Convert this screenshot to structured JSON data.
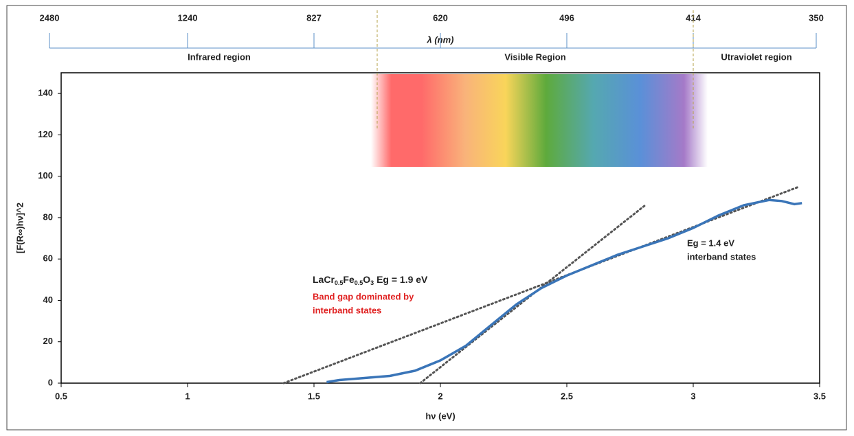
{
  "chart_data": {
    "type": "line",
    "x_label": "hν (eV)",
    "y_label": "[F(R∞)hν]^2",
    "x2_label": "λ (nm)",
    "xlim": [
      0.5,
      3.5
    ],
    "xticks": [
      0.5,
      1,
      1.5,
      2,
      2.5,
      3,
      3.5
    ],
    "ylim": [
      0,
      150
    ],
    "yticks": [
      0,
      20,
      40,
      60,
      80,
      100,
      120,
      140
    ],
    "x2ticks": [
      {
        "value": 0.5,
        "label": "2480"
      },
      {
        "value": 1,
        "label": "1240"
      },
      {
        "value": 1.5,
        "label": "827"
      },
      {
        "value": 2,
        "label": "620"
      },
      {
        "value": 2.5,
        "label": "496"
      },
      {
        "value": 3,
        "label": "414"
      },
      {
        "value": 3.5,
        "label": "350"
      }
    ],
    "regions": [
      {
        "label": "Infrared region",
        "range": [
          0.5,
          1.75
        ]
      },
      {
        "label": "Visible Region",
        "range": [
          1.75,
          3.0
        ]
      },
      {
        "label": "Utraviolet region",
        "range": [
          3.0,
          3.5
        ]
      }
    ],
    "series": [
      {
        "color": "#3a75b8",
        "x": [
          1.55,
          1.6,
          1.7,
          1.8,
          1.9,
          2.0,
          2.1,
          2.2,
          2.3,
          2.4,
          2.5,
          2.6,
          2.7,
          2.8,
          2.9,
          3.0,
          3.1,
          3.2,
          3.3,
          3.35,
          3.4,
          3.43
        ],
        "values": [
          0.5,
          1.5,
          2.5,
          3.5,
          6,
          11,
          18,
          28,
          38,
          46,
          52,
          57,
          62,
          66,
          70,
          75,
          81,
          86,
          88.5,
          88,
          86.5,
          87
        ]
      }
    ],
    "fits": [
      {
        "color": "#555555",
        "x": [
          1.92,
          2.81
        ],
        "values": [
          0,
          86
        ]
      },
      {
        "color": "#555555",
        "x": [
          1.38,
          3.42
        ],
        "values": [
          0,
          95
        ]
      }
    ],
    "annotations": {
      "formula": [
        "LaCr",
        "0.5",
        "Fe",
        "0.5",
        "O",
        "3",
        " Eg = 1.9 eV"
      ],
      "red_lines": [
        "Band gap dominated by",
        "interband states"
      ],
      "right_lines": [
        "Eg = 1.4 eV",
        "interband states"
      ]
    }
  }
}
